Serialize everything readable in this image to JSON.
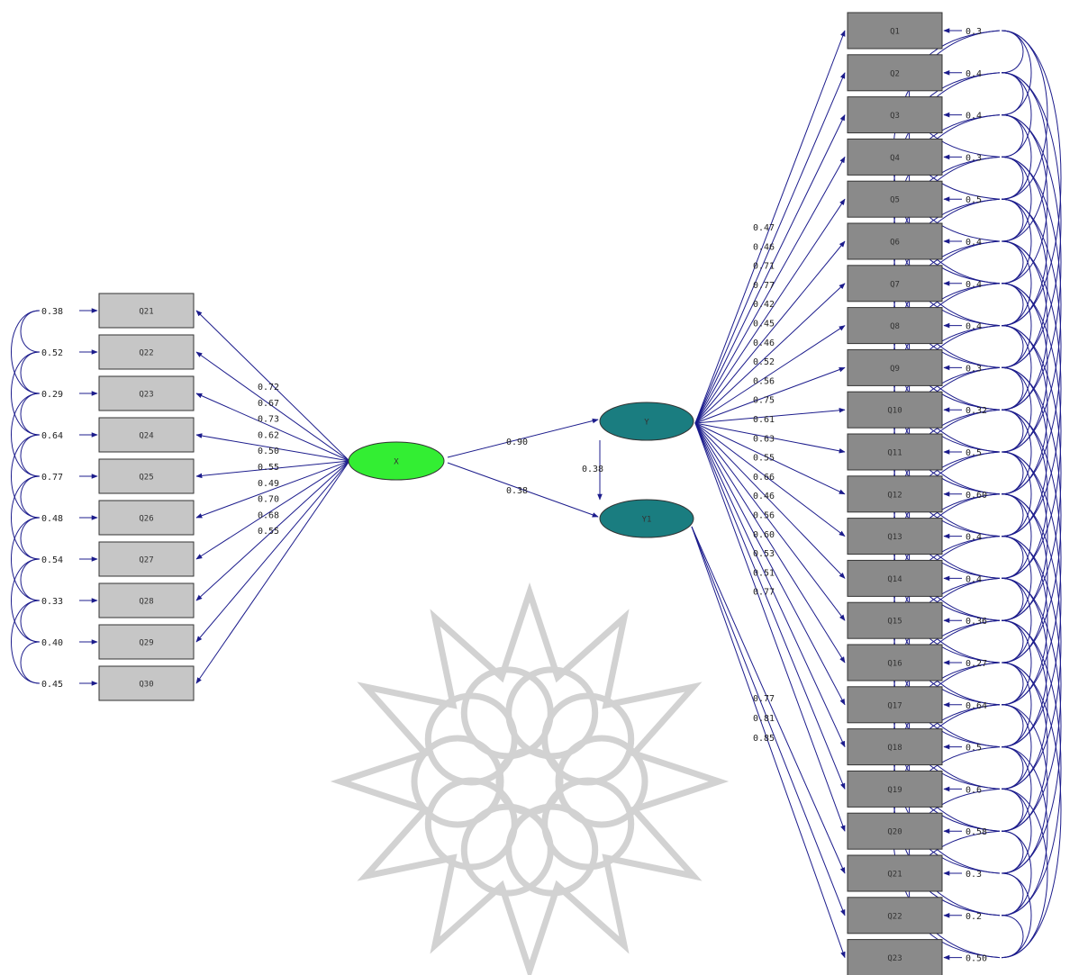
{
  "colors": {
    "line": "#1c1c8c",
    "left_box": "#c6c6c6",
    "right_box": "#8a8a8a",
    "latent_x": "#33ee33",
    "latent_y": "#1a7d80",
    "watermark": "#d2d2d2"
  },
  "latents": {
    "x": {
      "label": "X"
    },
    "y1": {
      "label": "Y"
    },
    "y2": {
      "label": "Y1"
    }
  },
  "structural": {
    "x_to_y1": "0.90",
    "x_to_y2": "0.38",
    "y1_to_y2": "0.38"
  },
  "left_items": [
    {
      "label": "Q21",
      "loading": "0.72",
      "error": "0.38"
    },
    {
      "label": "Q22",
      "loading": "0.67",
      "error": "0.52"
    },
    {
      "label": "Q23",
      "loading": "0.73",
      "error": "0.29"
    },
    {
      "label": "Q24",
      "loading": "0.62",
      "error": "0.64"
    },
    {
      "label": "Q25",
      "loading": "0.50",
      "error": "0.77"
    },
    {
      "label": "Q26",
      "loading": "0.55",
      "error": "0.48"
    },
    {
      "label": "Q27",
      "loading": "0.49",
      "error": "0.54"
    },
    {
      "label": "Q28",
      "loading": "0.70",
      "error": "0.33"
    },
    {
      "label": "Q29",
      "loading": "0.68",
      "error": "0.40"
    },
    {
      "label": "Q30",
      "loading": "0.55",
      "error": "0.45"
    }
  ],
  "right_items": [
    {
      "label": "Q1",
      "loading": "0.47",
      "error": "0.3"
    },
    {
      "label": "Q2",
      "loading": "0.46",
      "error": "0.4"
    },
    {
      "label": "Q3",
      "loading": "0.71",
      "error": "0.4"
    },
    {
      "label": "Q4",
      "loading": "0.77",
      "error": "0.3"
    },
    {
      "label": "Q5",
      "loading": "0.42",
      "error": "0.5"
    },
    {
      "label": "Q6",
      "loading": "0.45",
      "error": "0.4"
    },
    {
      "label": "Q7",
      "loading": "0.46",
      "error": "0.4"
    },
    {
      "label": "Q8",
      "loading": "0.52",
      "error": "0.4"
    },
    {
      "label": "Q9",
      "loading": "0.56",
      "error": "0.3"
    },
    {
      "label": "Q10",
      "loading": "0.75",
      "error": "0.32"
    },
    {
      "label": "Q11",
      "loading": "0.61",
      "error": "0.5"
    },
    {
      "label": "Q12",
      "loading": "0.63",
      "error": "0.60"
    },
    {
      "label": "Q13",
      "loading": "0.55",
      "error": "0.4"
    },
    {
      "label": "Q14",
      "loading": "0.66",
      "error": "0.4"
    },
    {
      "label": "Q15",
      "loading": "0.46",
      "error": "0.36"
    },
    {
      "label": "Q16",
      "loading": "0.56",
      "error": "0.27"
    },
    {
      "label": "Q17",
      "loading": "0.60",
      "error": "0.64"
    },
    {
      "label": "Q18",
      "loading": "0.53",
      "error": "0.5"
    },
    {
      "label": "Q19",
      "loading": "0.51",
      "error": "0.6"
    },
    {
      "label": "Q20",
      "loading": "0.77",
      "error": "0.58"
    },
    {
      "label": "Q21",
      "loading": "0.77",
      "error": "0.3"
    },
    {
      "label": "Q22",
      "loading": "0.81",
      "error": "0.2"
    },
    {
      "label": "Q23",
      "loading": "0.85",
      "error": "0.50"
    }
  ]
}
